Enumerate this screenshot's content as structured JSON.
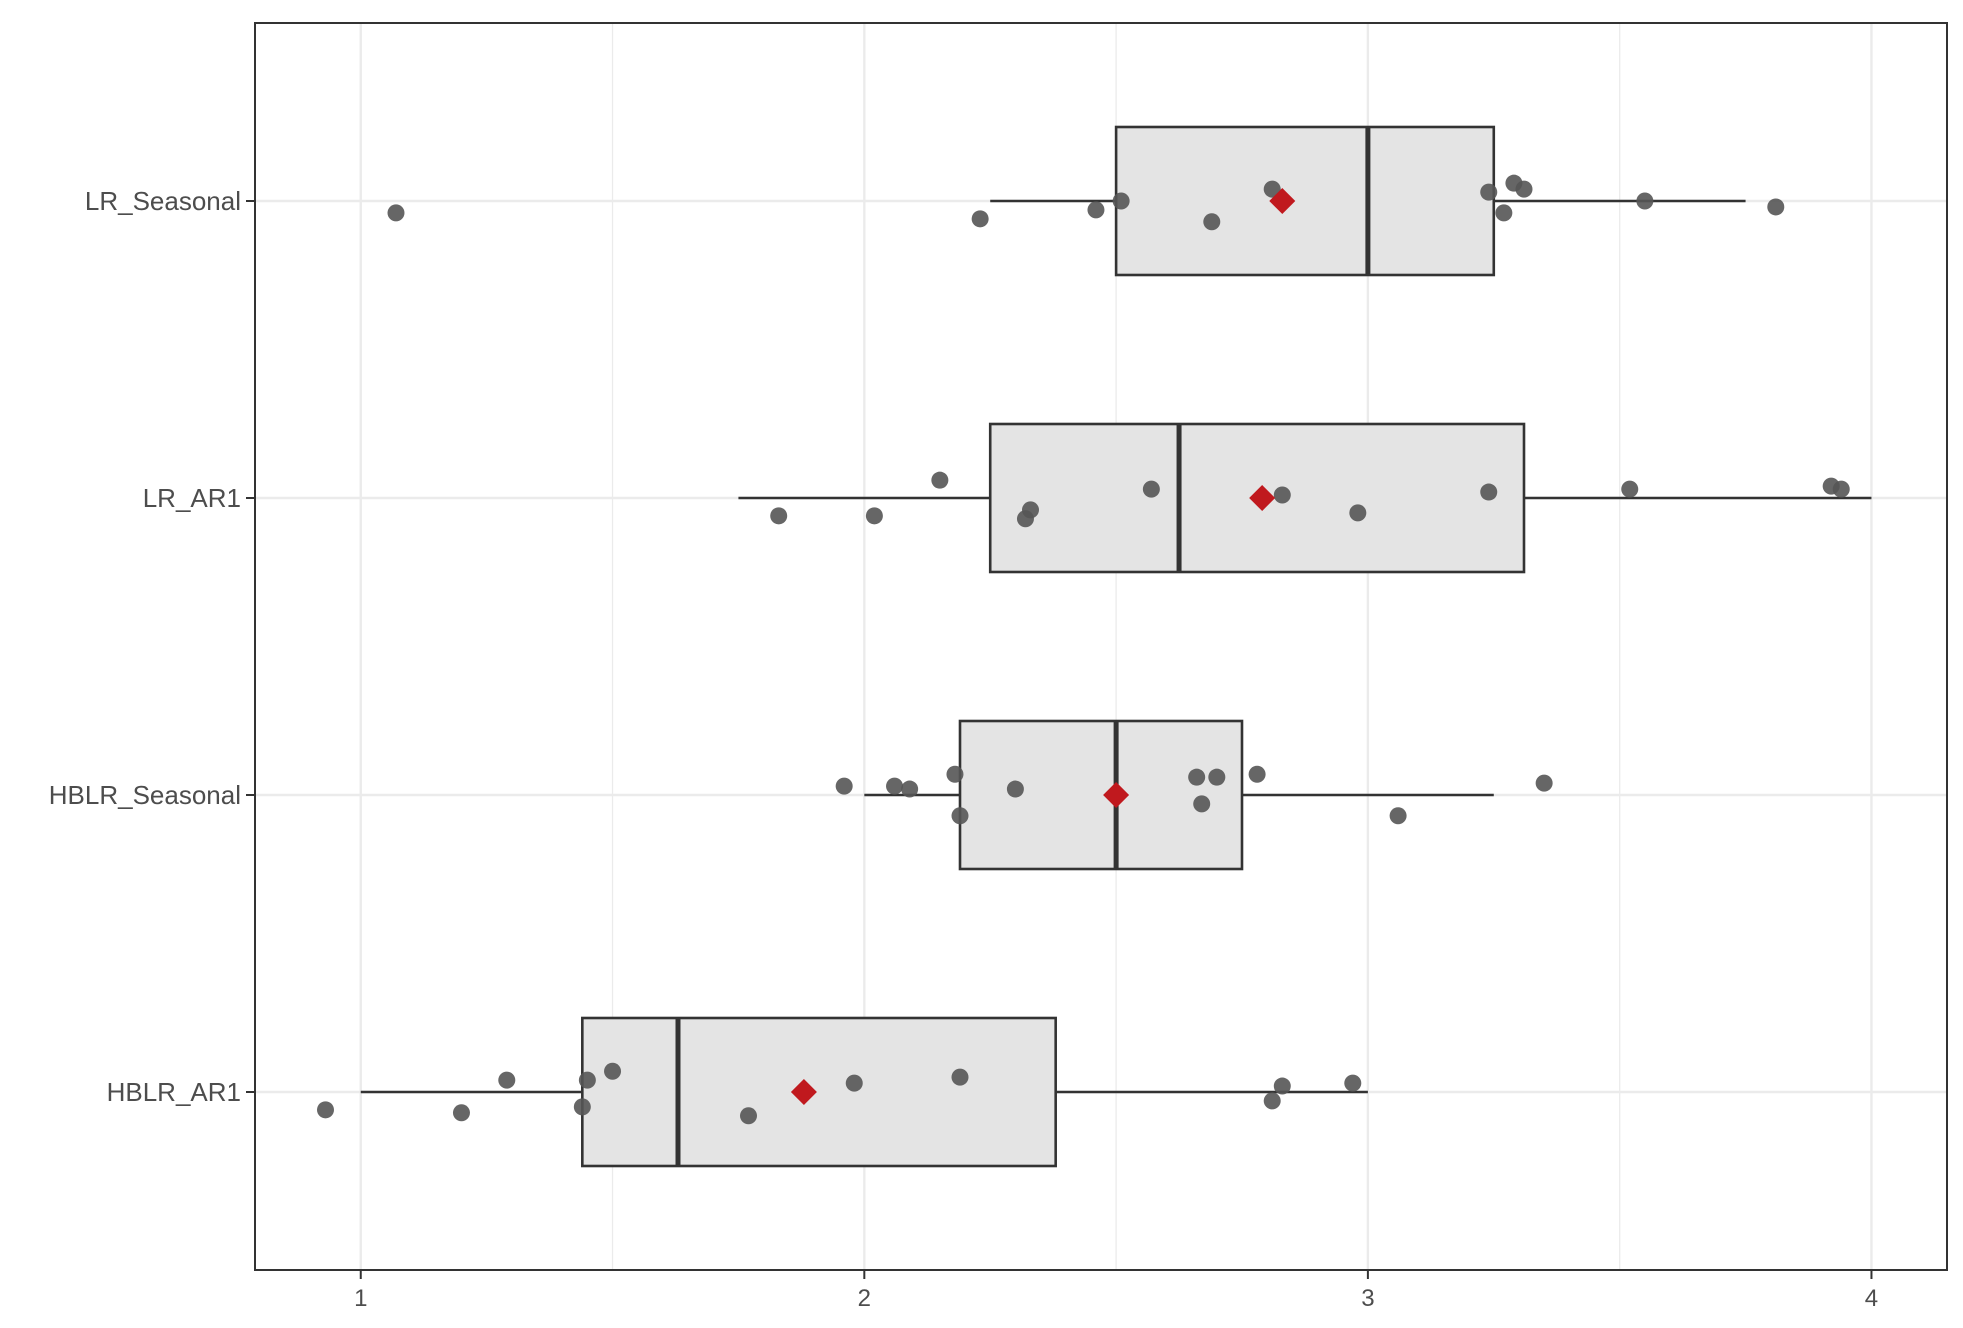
{
  "chart_data": {
    "type": "boxplot",
    "orientation": "horizontal",
    "title": "",
    "xlabel": "",
    "ylabel": "",
    "xlim": [
      0.79,
      4.15
    ],
    "x_ticks": [
      1,
      2,
      3,
      4
    ],
    "x_tick_labels": [
      "1",
      "2",
      "3",
      "4"
    ],
    "grid": true,
    "legend": "none",
    "colors": {
      "box_fill": "#e4e4e4",
      "box_stroke": "#333333",
      "point": "#555555",
      "mean_marker": "#c0191e",
      "grid": "#ebebeb",
      "panel_border": "#333333"
    },
    "categories": [
      "LR_Seasonal",
      "LR_AR1",
      "HBLR_Seasonal",
      "HBLR_AR1"
    ],
    "boxes": [
      {
        "name": "LR_Seasonal",
        "whisker_low": 2.25,
        "q1": 2.5,
        "median": 3.0,
        "q3": 3.25,
        "whisker_high": 3.75,
        "mean": 2.83,
        "points": [
          {
            "x": 1.07,
            "jitter": -0.04
          },
          {
            "x": 2.23,
            "jitter": -0.06
          },
          {
            "x": 2.46,
            "jitter": -0.03
          },
          {
            "x": 2.51,
            "jitter": 0.0
          },
          {
            "x": 2.69,
            "jitter": -0.07
          },
          {
            "x": 2.81,
            "jitter": 0.04
          },
          {
            "x": 3.24,
            "jitter": 0.03
          },
          {
            "x": 3.27,
            "jitter": -0.04
          },
          {
            "x": 3.29,
            "jitter": 0.06
          },
          {
            "x": 3.31,
            "jitter": 0.04
          },
          {
            "x": 3.55,
            "jitter": 0.0
          },
          {
            "x": 3.81,
            "jitter": -0.02
          }
        ]
      },
      {
        "name": "LR_AR1",
        "whisker_low": 1.75,
        "q1": 2.25,
        "median": 2.625,
        "q3": 3.31,
        "whisker_high": 4.0,
        "mean": 2.79,
        "points": [
          {
            "x": 1.83,
            "jitter": -0.06
          },
          {
            "x": 2.02,
            "jitter": -0.06
          },
          {
            "x": 2.15,
            "jitter": 0.06
          },
          {
            "x": 2.32,
            "jitter": -0.07
          },
          {
            "x": 2.33,
            "jitter": -0.04
          },
          {
            "x": 2.57,
            "jitter": 0.03
          },
          {
            "x": 2.83,
            "jitter": 0.01
          },
          {
            "x": 2.98,
            "jitter": -0.05
          },
          {
            "x": 3.24,
            "jitter": 0.02
          },
          {
            "x": 3.52,
            "jitter": 0.03
          },
          {
            "x": 3.92,
            "jitter": 0.04
          },
          {
            "x": 3.94,
            "jitter": 0.03
          }
        ]
      },
      {
        "name": "HBLR_Seasonal",
        "whisker_low": 2.0,
        "q1": 2.19,
        "median": 2.5,
        "q3": 2.75,
        "whisker_high": 3.25,
        "mean": 2.5,
        "points": [
          {
            "x": 1.96,
            "jitter": 0.03
          },
          {
            "x": 2.06,
            "jitter": 0.03
          },
          {
            "x": 2.09,
            "jitter": 0.02
          },
          {
            "x": 2.18,
            "jitter": 0.07
          },
          {
            "x": 2.19,
            "jitter": -0.07
          },
          {
            "x": 2.3,
            "jitter": 0.02
          },
          {
            "x": 2.66,
            "jitter": 0.06
          },
          {
            "x": 2.67,
            "jitter": -0.03
          },
          {
            "x": 2.7,
            "jitter": 0.06
          },
          {
            "x": 2.78,
            "jitter": 0.07
          },
          {
            "x": 3.06,
            "jitter": -0.07
          },
          {
            "x": 3.35,
            "jitter": 0.04
          }
        ]
      },
      {
        "name": "HBLR_AR1",
        "whisker_low": 1.0,
        "q1": 1.44,
        "median": 1.63,
        "q3": 2.38,
        "whisker_high": 3.0,
        "mean": 1.88,
        "points": [
          {
            "x": 0.93,
            "jitter": -0.06
          },
          {
            "x": 1.2,
            "jitter": -0.07
          },
          {
            "x": 1.29,
            "jitter": 0.04
          },
          {
            "x": 1.44,
            "jitter": -0.05
          },
          {
            "x": 1.45,
            "jitter": 0.04
          },
          {
            "x": 1.5,
            "jitter": 0.07
          },
          {
            "x": 1.77,
            "jitter": -0.08
          },
          {
            "x": 1.98,
            "jitter": 0.03
          },
          {
            "x": 2.19,
            "jitter": 0.05
          },
          {
            "x": 2.81,
            "jitter": -0.03
          },
          {
            "x": 2.83,
            "jitter": 0.02
          },
          {
            "x": 2.97,
            "jitter": 0.03
          }
        ]
      }
    ]
  }
}
